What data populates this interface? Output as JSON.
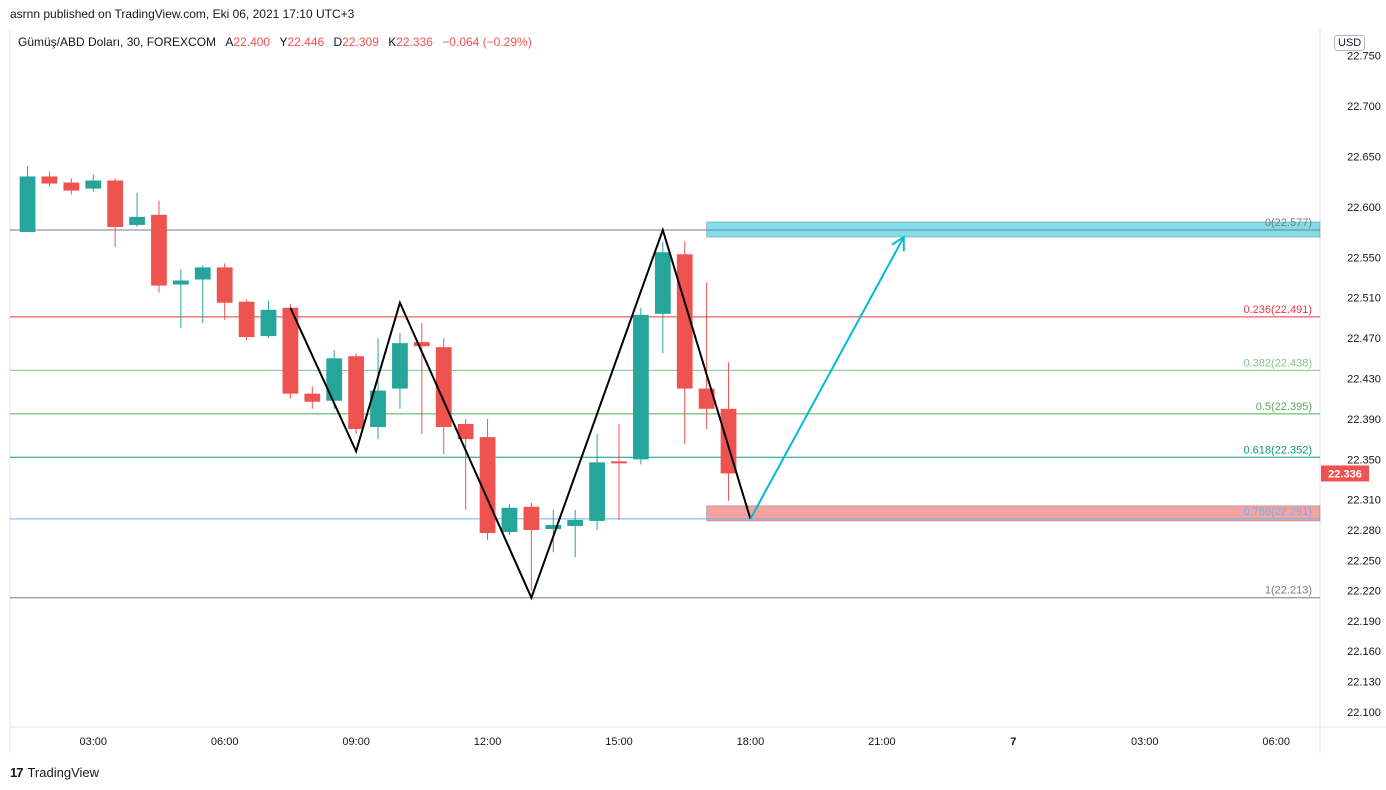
{
  "header": {
    "published": "asrnn published on TradingView.com, Eki 06, 2021 17:10 UTC+3",
    "symbol": "Gümüş/ABD Doları, 30, FOREXCOM",
    "o_label": "A",
    "o_value": "22.400",
    "h_label": "Y",
    "h_value": "22.446",
    "l_label": "D",
    "l_value": "22.309",
    "c_label": "K",
    "c_value": "22.336",
    "change": "−0.064 (−0.29%)"
  },
  "currency": "USD",
  "branding": {
    "logo": "17",
    "name": "TradingView"
  },
  "colors": {
    "up": "#26a69a",
    "down": "#ef5350",
    "arrow": "#00bcd4",
    "zone_top": "#80deea",
    "zone_bottom": "#f4a3a3"
  },
  "chart_data": {
    "type": "candlestick",
    "ylim": [
      22.085,
      22.775
    ],
    "xlim": [
      0.6,
      30.5
    ],
    "y_ticks": [
      "22.100",
      "22.130",
      "22.160",
      "22.190",
      "22.220",
      "22.250",
      "22.280",
      "22.310",
      "22.350",
      "22.390",
      "22.430",
      "22.470",
      "22.510",
      "22.550",
      "22.600",
      "22.650",
      "22.700",
      "22.750"
    ],
    "x_ticks": [
      {
        "x": 2.5,
        "label": "03:00"
      },
      {
        "x": 5.5,
        "label": "06:00"
      },
      {
        "x": 8.5,
        "label": "09:00"
      },
      {
        "x": 11.5,
        "label": "12:00"
      },
      {
        "x": 14.5,
        "label": "15:00"
      },
      {
        "x": 17.5,
        "label": "18:00"
      },
      {
        "x": 20.5,
        "label": "21:00"
      },
      {
        "x": 23.5,
        "label": "7"
      },
      {
        "x": 26.5,
        "label": "03:00"
      },
      {
        "x": 29.5,
        "label": "06:00"
      }
    ],
    "candles": [
      {
        "t": 1.0,
        "o": 22.575,
        "h": 22.64,
        "l": 22.575,
        "c": 22.63
      },
      {
        "t": 1.5,
        "o": 22.63,
        "h": 22.635,
        "l": 22.62,
        "c": 22.623
      },
      {
        "t": 2.0,
        "o": 22.624,
        "h": 22.628,
        "l": 22.612,
        "c": 22.616
      },
      {
        "t": 2.5,
        "o": 22.618,
        "h": 22.632,
        "l": 22.615,
        "c": 22.626
      },
      {
        "t": 3.0,
        "o": 22.626,
        "h": 22.628,
        "l": 22.56,
        "c": 22.58
      },
      {
        "t": 3.5,
        "o": 22.582,
        "h": 22.614,
        "l": 22.58,
        "c": 22.59
      },
      {
        "t": 4.0,
        "o": 22.592,
        "h": 22.606,
        "l": 22.515,
        "c": 22.522
      },
      {
        "t": 4.5,
        "o": 22.523,
        "h": 22.538,
        "l": 22.48,
        "c": 22.527
      },
      {
        "t": 5.0,
        "o": 22.528,
        "h": 22.542,
        "l": 22.485,
        "c": 22.54
      },
      {
        "t": 5.5,
        "o": 22.54,
        "h": 22.544,
        "l": 22.488,
        "c": 22.505
      },
      {
        "t": 6.0,
        "o": 22.506,
        "h": 22.508,
        "l": 22.468,
        "c": 22.471
      },
      {
        "t": 6.5,
        "o": 22.472,
        "h": 22.507,
        "l": 22.47,
        "c": 22.498
      },
      {
        "t": 7.0,
        "o": 22.5,
        "h": 22.504,
        "l": 22.41,
        "c": 22.415
      },
      {
        "t": 7.5,
        "o": 22.415,
        "h": 22.422,
        "l": 22.4,
        "c": 22.407
      },
      {
        "t": 8.0,
        "o": 22.408,
        "h": 22.458,
        "l": 22.4,
        "c": 22.45
      },
      {
        "t": 8.5,
        "o": 22.452,
        "h": 22.455,
        "l": 22.375,
        "c": 22.38
      },
      {
        "t": 9.0,
        "o": 22.382,
        "h": 22.47,
        "l": 22.37,
        "c": 22.418
      },
      {
        "t": 9.5,
        "o": 22.42,
        "h": 22.475,
        "l": 22.4,
        "c": 22.465
      },
      {
        "t": 10.0,
        "o": 22.466,
        "h": 22.485,
        "l": 22.375,
        "c": 22.462
      },
      {
        "t": 10.5,
        "o": 22.461,
        "h": 22.47,
        "l": 22.355,
        "c": 22.382
      },
      {
        "t": 11.0,
        "o": 22.385,
        "h": 22.39,
        "l": 22.3,
        "c": 22.37
      },
      {
        "t": 11.5,
        "o": 22.372,
        "h": 22.39,
        "l": 22.27,
        "c": 22.277
      },
      {
        "t": 12.0,
        "o": 22.278,
        "h": 22.306,
        "l": 22.275,
        "c": 22.302
      },
      {
        "t": 12.5,
        "o": 22.303,
        "h": 22.307,
        "l": 22.22,
        "c": 22.28
      },
      {
        "t": 13.0,
        "o": 22.281,
        "h": 22.3,
        "l": 22.258,
        "c": 22.285
      },
      {
        "t": 13.5,
        "o": 22.284,
        "h": 22.3,
        "l": 22.253,
        "c": 22.29
      },
      {
        "t": 14.0,
        "o": 22.289,
        "h": 22.375,
        "l": 22.28,
        "c": 22.347
      },
      {
        "t": 14.5,
        "o": 22.348,
        "h": 22.385,
        "l": 22.29,
        "c": 22.346
      },
      {
        "t": 15.0,
        "o": 22.35,
        "h": 22.5,
        "l": 22.345,
        "c": 22.493
      },
      {
        "t": 15.5,
        "o": 22.494,
        "h": 22.565,
        "l": 22.455,
        "c": 22.555
      },
      {
        "t": 16.0,
        "o": 22.553,
        "h": 22.566,
        "l": 22.365,
        "c": 22.42
      },
      {
        "t": 16.5,
        "o": 22.42,
        "h": 22.525,
        "l": 22.38,
        "c": 22.4
      },
      {
        "t": 17.0,
        "o": 22.4,
        "h": 22.446,
        "l": 22.309,
        "c": 22.336
      }
    ],
    "fib_levels": [
      {
        "price": 22.577,
        "label": "0(22.577)",
        "color": "#787b86"
      },
      {
        "price": 22.491,
        "label": "0.236(22.491)",
        "color": "#f23645"
      },
      {
        "price": 22.438,
        "label": "0.382(22.438)",
        "color": "#81c784"
      },
      {
        "price": 22.395,
        "label": "0.5(22.395)",
        "color": "#4caf50"
      },
      {
        "price": 22.352,
        "label": "0.618(22.352)",
        "color": "#089981"
      },
      {
        "price": 22.291,
        "label": "0.786(22.291)",
        "color": "#64b5f6"
      },
      {
        "price": 22.213,
        "label": "1(22.213)",
        "color": "#787b86"
      }
    ],
    "zigzag": [
      {
        "t": 7.0,
        "p": 22.5
      },
      {
        "t": 8.5,
        "p": 22.358
      },
      {
        "t": 9.5,
        "p": 22.505
      },
      {
        "t": 12.5,
        "p": 22.213
      },
      {
        "t": 15.5,
        "p": 22.577
      },
      {
        "t": 17.5,
        "p": 22.291
      }
    ],
    "arrow": {
      "from": {
        "t": 17.5,
        "p": 22.291
      },
      "to": {
        "t": 21.0,
        "p": 22.57
      }
    },
    "zones": [
      {
        "t0": 16.5,
        "t1": 30.5,
        "p0": 22.57,
        "p1": 22.585,
        "color": "#80deea"
      },
      {
        "t0": 16.5,
        "t1": 30.5,
        "p0": 22.289,
        "p1": 22.304,
        "color": "#f4a3a3"
      }
    ],
    "last_price": {
      "price": 22.336,
      "label": "22.336",
      "color": "#ef5350"
    }
  }
}
